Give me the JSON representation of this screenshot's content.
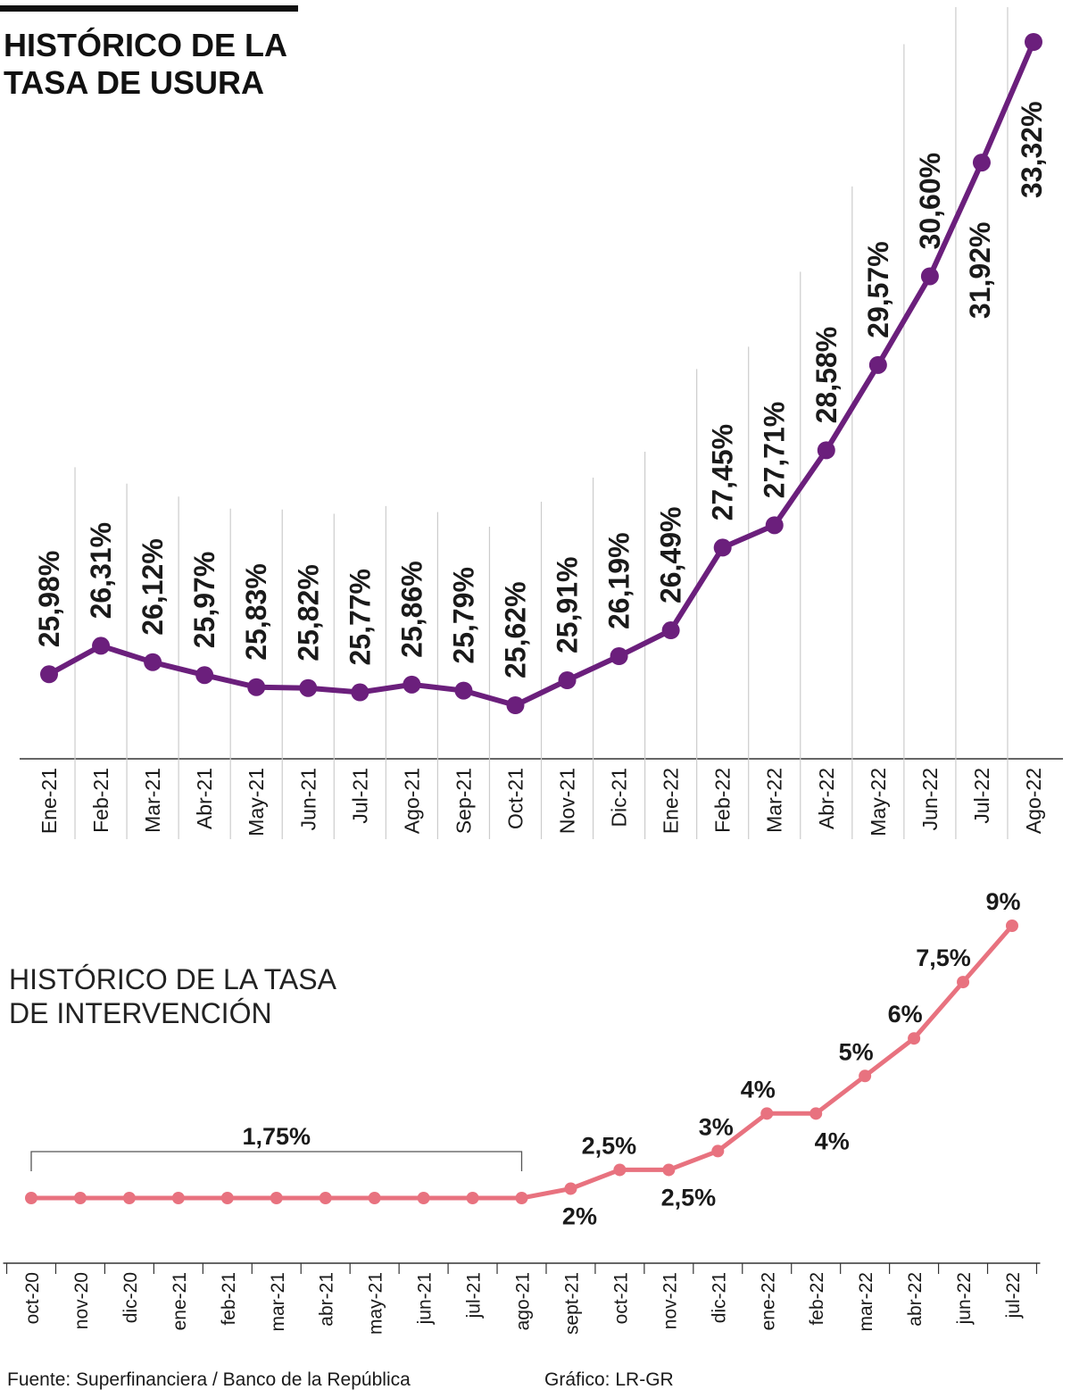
{
  "chart_data": [
    {
      "type": "line",
      "title": "HISTÓRICO DE LA TASA DE USURA",
      "color": "#6b1f7c",
      "categories": [
        "Ene-21",
        "Feb-21",
        "Mar-21",
        "Abr-21",
        "May-21",
        "Jun-21",
        "Jul-21",
        "Ago-21",
        "Sep-21",
        "Oct-21",
        "Nov-21",
        "Dic-21",
        "Ene-22",
        "Feb-22",
        "Mar-22",
        "Abr-22",
        "May-22",
        "Jun-22",
        "Jul-22",
        "Ago-22"
      ],
      "values": [
        25.98,
        26.31,
        26.12,
        25.97,
        25.83,
        25.82,
        25.77,
        25.86,
        25.79,
        25.62,
        25.91,
        26.19,
        26.49,
        27.45,
        27.71,
        28.58,
        29.57,
        30.6,
        31.92,
        33.32
      ],
      "value_labels": [
        "25,98%",
        "26,31%",
        "26,12%",
        "25,97%",
        "25,83%",
        "25,82%",
        "25,77%",
        "25,86%",
        "25,79%",
        "25,62%",
        "25,91%",
        "26,19%",
        "26,49%",
        "27,45%",
        "27,71%",
        "28,58%",
        "29,57%",
        "30,60%",
        "31,92%",
        "33,32%"
      ]
    },
    {
      "type": "line",
      "title": "HISTÓRICO DE LA TASA DE INTERVENCIÓN",
      "color": "#e8727f",
      "categories": [
        "oct-20",
        "nov-20",
        "dic-20",
        "ene-21",
        "feb-21",
        "mar-21",
        "abr-21",
        "may-21",
        "jun-21",
        "jul-21",
        "ago-21",
        "sept-21",
        "oct-21",
        "nov-21",
        "dic-21",
        "ene-22",
        "feb-22",
        "mar-22",
        "abr-22",
        "jun-22",
        "jul-22"
      ],
      "values": [
        1.75,
        1.75,
        1.75,
        1.75,
        1.75,
        1.75,
        1.75,
        1.75,
        1.75,
        1.75,
        1.75,
        2,
        2.5,
        2.5,
        3,
        4,
        4,
        5,
        6,
        7.5,
        9
      ],
      "value_labels": [
        null,
        null,
        null,
        null,
        null,
        null,
        null,
        null,
        null,
        null,
        null,
        "2%",
        "2,5%",
        "2,5%",
        "3%",
        "4%",
        "4%",
        "5%",
        "6%",
        "7,5%",
        "9%"
      ],
      "annotation": "1,75%"
    }
  ],
  "source": "Fuente: Superfinanciera / Banco de la República",
  "credit": "Gráfico: LR-GR"
}
